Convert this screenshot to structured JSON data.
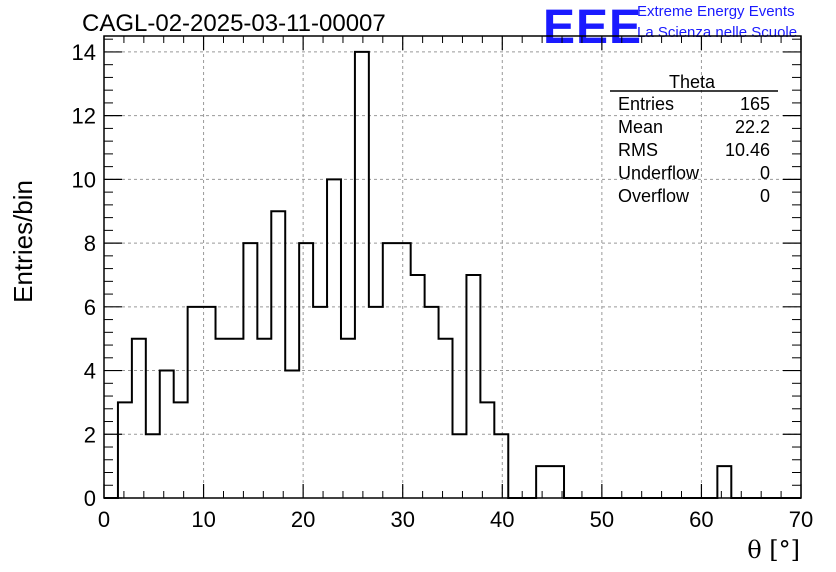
{
  "chart_data": {
    "type": "histogram",
    "title": "CAGL-02-2025-03-11-00007",
    "xlabel": "θ [°]",
    "ylabel": "Entries/bin",
    "xlim": [
      0,
      70
    ],
    "ylim": [
      0,
      14.5
    ],
    "grid": true,
    "bin_width": 1.4,
    "x_tick_labels": [
      "0",
      "10",
      "20",
      "30",
      "40",
      "50",
      "60",
      "70"
    ],
    "y_tick_labels": [
      "0",
      "2",
      "4",
      "6",
      "8",
      "10",
      "12",
      "14"
    ],
    "bin_edges": [
      0,
      1.4,
      2.8,
      4.2,
      5.6,
      7.0,
      8.4,
      9.8,
      11.2,
      12.6,
      14.0,
      15.4,
      16.8,
      18.2,
      19.6,
      21.0,
      22.4,
      23.8,
      25.2,
      26.6,
      28.0,
      29.4,
      30.8,
      32.2,
      33.6,
      35.0,
      36.4,
      37.8,
      39.2,
      40.6,
      42.0,
      43.4,
      44.8,
      46.2,
      47.6,
      49.0,
      50.4,
      51.8,
      53.2,
      54.6,
      56.0,
      57.4,
      58.8,
      60.2,
      61.6,
      63.0,
      64.4,
      65.8,
      67.2,
      68.6,
      70.0
    ],
    "values": [
      0,
      3,
      5,
      2,
      4,
      3,
      6,
      6,
      5,
      5,
      8,
      5,
      9,
      4,
      8,
      6,
      10,
      5,
      14,
      6,
      8,
      8,
      7,
      6,
      5,
      2,
      7,
      3,
      2,
      0,
      0,
      1,
      1,
      0,
      0,
      0,
      0,
      0,
      0,
      0,
      0,
      0,
      0,
      0,
      1,
      0,
      0,
      0,
      0,
      0
    ]
  },
  "stats_box": {
    "title": "Theta",
    "rows": [
      {
        "label": "Entries",
        "value": "165"
      },
      {
        "label": "Mean",
        "value": "22.2"
      },
      {
        "label": "RMS",
        "value": "10.46"
      },
      {
        "label": "Underflow",
        "value": "0"
      },
      {
        "label": "Overflow",
        "value": "0"
      }
    ]
  },
  "logo": {
    "mark": "EEE",
    "line1": "Extreme Energy Events",
    "line2": "La Scienza nelle Scuole",
    "color": "#1a1aff"
  }
}
